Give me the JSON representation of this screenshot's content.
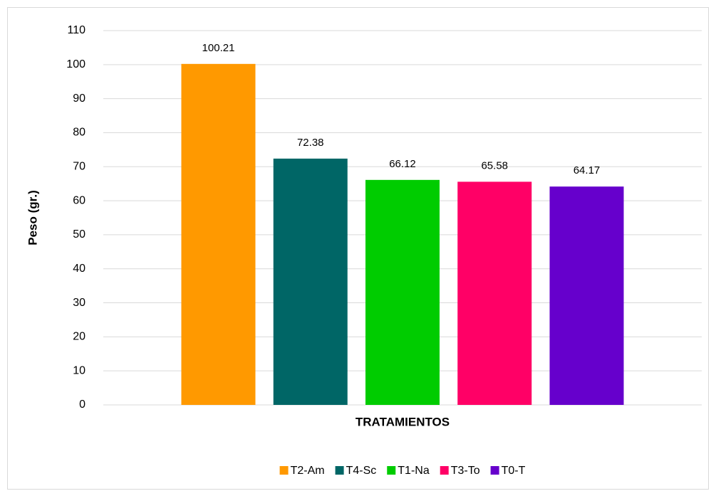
{
  "chart_data": {
    "type": "bar",
    "x_label": "TRATAMIENTOS",
    "y_label": "Peso (gr.)",
    "categories": [
      null
    ],
    "series": [
      {
        "name": "T2-Am",
        "color": "#ff9900",
        "values": [
          100.21
        ]
      },
      {
        "name": "T4-Sc",
        "color": "#006666",
        "values": [
          72.38
        ]
      },
      {
        "name": "T1-Na",
        "color": "#00cc00",
        "values": [
          66.12
        ]
      },
      {
        "name": "T3-To",
        "color": "#ff0066",
        "values": [
          65.58
        ]
      },
      {
        "name": "T0-T",
        "color": "#6600cc",
        "values": [
          64.17
        ]
      }
    ],
    "ylim": [
      0,
      110
    ],
    "yticks": [
      0,
      10,
      20,
      30,
      40,
      50,
      60,
      70,
      80,
      90,
      100,
      110
    ],
    "grid": true,
    "legend": "bottom"
  }
}
